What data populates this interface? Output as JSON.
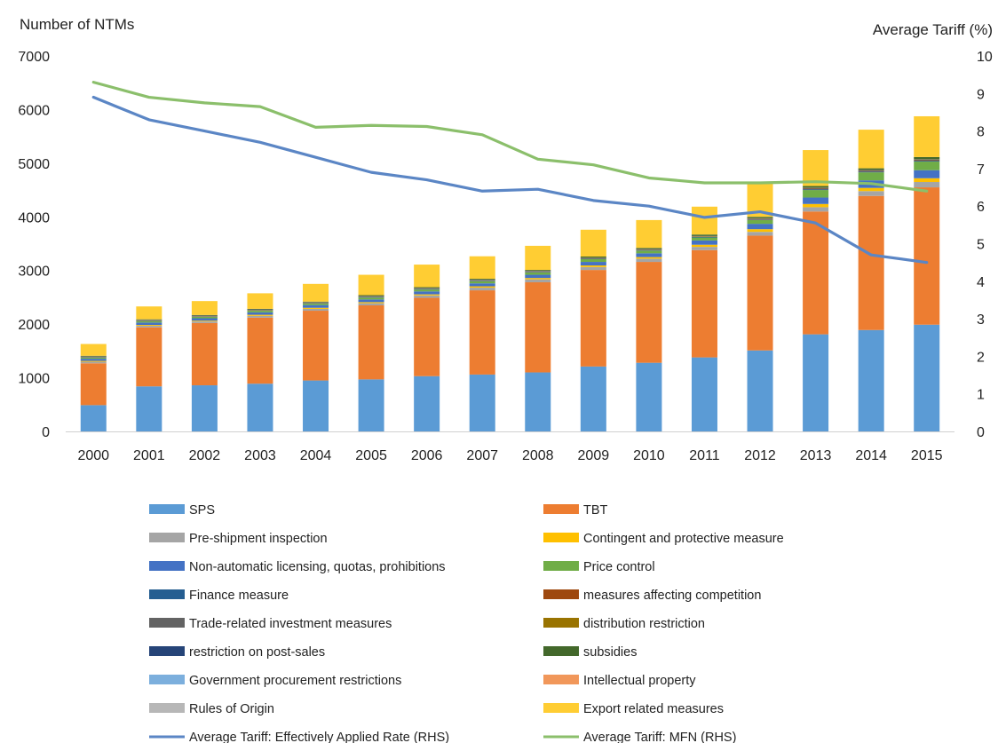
{
  "chart_data": {
    "type": "bar",
    "stacked": true,
    "title": "",
    "ylabel_left": "Number of NTMs",
    "ylabel_right": "Average Tariff (%)",
    "ylim_left": [
      0,
      7000
    ],
    "ylim_right": [
      0,
      10
    ],
    "yticks_left": [
      "0",
      "1000",
      "2000",
      "3000",
      "4000",
      "5000",
      "6000",
      "7000"
    ],
    "yticks_right": [
      "0",
      "1",
      "2",
      "3",
      "4",
      "5",
      "6",
      "7",
      "8",
      "9",
      "10"
    ],
    "categories": [
      "2000",
      "2001",
      "2002",
      "2003",
      "2004",
      "2005",
      "2006",
      "2007",
      "2008",
      "2009",
      "2010",
      "2011",
      "2012",
      "2013",
      "2014",
      "2015"
    ],
    "grid": false,
    "legend_position": "bottom",
    "series": [
      {
        "name": "SPS",
        "color": "#5B9BD5",
        "values": [
          490,
          840,
          860,
          890,
          950,
          970,
          1030,
          1060,
          1100,
          1210,
          1280,
          1380,
          1510,
          1810,
          1890,
          1990
        ]
      },
      {
        "name": "TBT",
        "color": "#ED7D31",
        "values": [
          780,
          1100,
          1160,
          1230,
          1300,
          1380,
          1460,
          1570,
          1680,
          1800,
          1880,
          2000,
          2140,
          2290,
          2500,
          2560
        ]
      },
      {
        "name": "Pre-shipment inspection",
        "color": "#A5A5A5",
        "values": [
          30,
          30,
          30,
          35,
          35,
          40,
          45,
          50,
          55,
          55,
          60,
          60,
          70,
          80,
          90,
          100
        ]
      },
      {
        "name": "Contingent and protective measure",
        "color": "#FFC000",
        "values": [
          15,
          15,
          15,
          20,
          20,
          20,
          20,
          25,
          25,
          30,
          30,
          40,
          50,
          60,
          60,
          70
        ]
      },
      {
        "name": "Non-automatic licensing, quotas, prohibitions",
        "color": "#4472C4",
        "values": [
          40,
          45,
          45,
          45,
          50,
          50,
          55,
          55,
          60,
          65,
          70,
          80,
          100,
          120,
          140,
          150
        ]
      },
      {
        "name": "Price control",
        "color": "#70AD47",
        "values": [
          20,
          25,
          25,
          30,
          30,
          35,
          35,
          40,
          45,
          50,
          50,
          55,
          70,
          140,
          150,
          160
        ]
      },
      {
        "name": "Finance measure",
        "color": "#255E91",
        "values": [
          5,
          5,
          5,
          5,
          5,
          10,
          10,
          10,
          10,
          10,
          10,
          10,
          10,
          15,
          15,
          15
        ]
      },
      {
        "name": "measures affecting competition",
        "color": "#9E480E",
        "values": [
          5,
          5,
          5,
          5,
          5,
          5,
          5,
          5,
          5,
          5,
          5,
          5,
          10,
          10,
          10,
          10
        ]
      },
      {
        "name": "Trade-related investment measures",
        "color": "#636363",
        "values": [
          5,
          5,
          5,
          5,
          5,
          5,
          5,
          5,
          5,
          5,
          5,
          5,
          5,
          10,
          10,
          10
        ]
      },
      {
        "name": "distribution restriction",
        "color": "#997300",
        "values": [
          5,
          5,
          5,
          5,
          5,
          5,
          5,
          5,
          5,
          5,
          5,
          5,
          5,
          5,
          5,
          5
        ]
      },
      {
        "name": "restriction on post-sales",
        "color": "#264478",
        "values": [
          5,
          5,
          5,
          5,
          5,
          5,
          5,
          5,
          5,
          5,
          5,
          5,
          5,
          5,
          5,
          5
        ]
      },
      {
        "name": "subsidies",
        "color": "#43682B",
        "values": [
          10,
          10,
          10,
          10,
          10,
          15,
          15,
          15,
          15,
          20,
          20,
          25,
          25,
          30,
          30,
          40
        ]
      },
      {
        "name": "Government procurement restrictions",
        "color": "#7CAFDD",
        "values": [
          0,
          0,
          0,
          0,
          0,
          0,
          0,
          0,
          0,
          0,
          0,
          0,
          0,
          0,
          0,
          0
        ]
      },
      {
        "name": "Intellectual property",
        "color": "#F1975A",
        "values": [
          0,
          0,
          0,
          0,
          0,
          0,
          0,
          0,
          0,
          0,
          0,
          0,
          0,
          0,
          0,
          0
        ]
      },
      {
        "name": "Rules of Origin",
        "color": "#B7B7B7",
        "values": [
          0,
          0,
          0,
          0,
          0,
          0,
          0,
          0,
          0,
          0,
          0,
          0,
          0,
          0,
          0,
          0
        ]
      },
      {
        "name": "Export related measures",
        "color": "#FFCD33",
        "values": [
          220,
          240,
          260,
          290,
          330,
          380,
          420,
          420,
          450,
          500,
          520,
          520,
          630,
          670,
          720,
          760
        ]
      }
    ],
    "line_series": [
      {
        "name": "Average Tariff: Effectively Applied Rate (RHS)",
        "color": "#5B86C5",
        "axis": "right",
        "values": [
          8.9,
          8.3,
          8.0,
          7.7,
          7.3,
          6.9,
          6.7,
          6.4,
          6.45,
          6.15,
          6.0,
          5.7,
          5.85,
          5.55,
          4.7,
          4.5
        ]
      },
      {
        "name": "Average Tariff: MFN (RHS)",
        "color": "#8BBF6B",
        "axis": "right",
        "values": [
          9.3,
          8.9,
          8.75,
          8.65,
          8.1,
          8.15,
          8.12,
          7.9,
          7.25,
          7.1,
          6.75,
          6.62,
          6.62,
          6.65,
          6.6,
          6.4
        ]
      }
    ]
  }
}
